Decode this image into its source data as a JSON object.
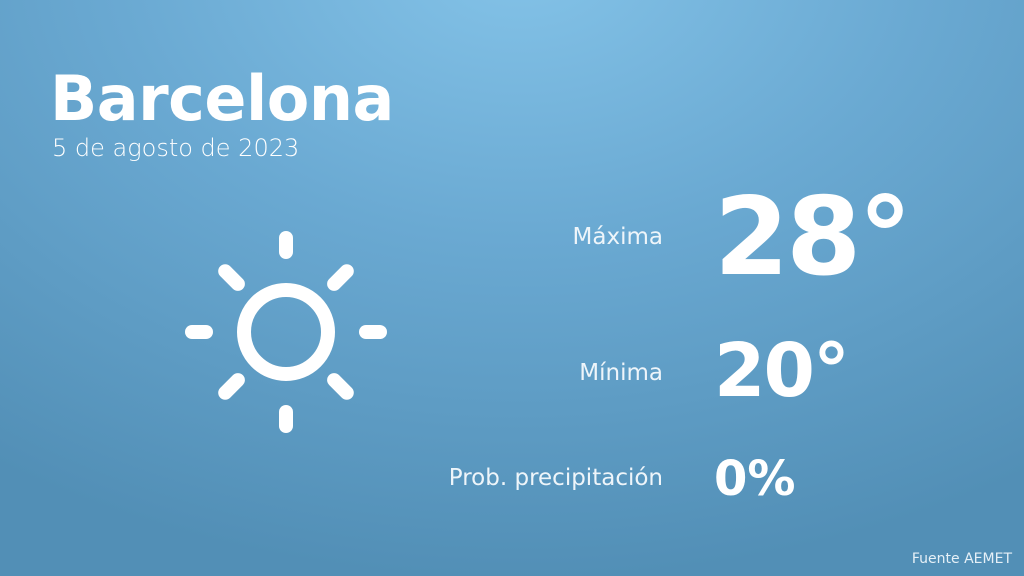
{
  "city": "Barcelona",
  "date": "5 de agosto de 2023",
  "weather_icon": "sun-icon",
  "max": {
    "label": "Máxima",
    "value": "28°"
  },
  "min": {
    "label": "Mínima",
    "value": "20°"
  },
  "precip": {
    "label": "Prob. precipitación",
    "value": "0%"
  },
  "source": "Fuente AEMET",
  "colors": {
    "background_top": "#84c3e8",
    "background_bottom": "#528fb6",
    "text": "#ffffff"
  }
}
